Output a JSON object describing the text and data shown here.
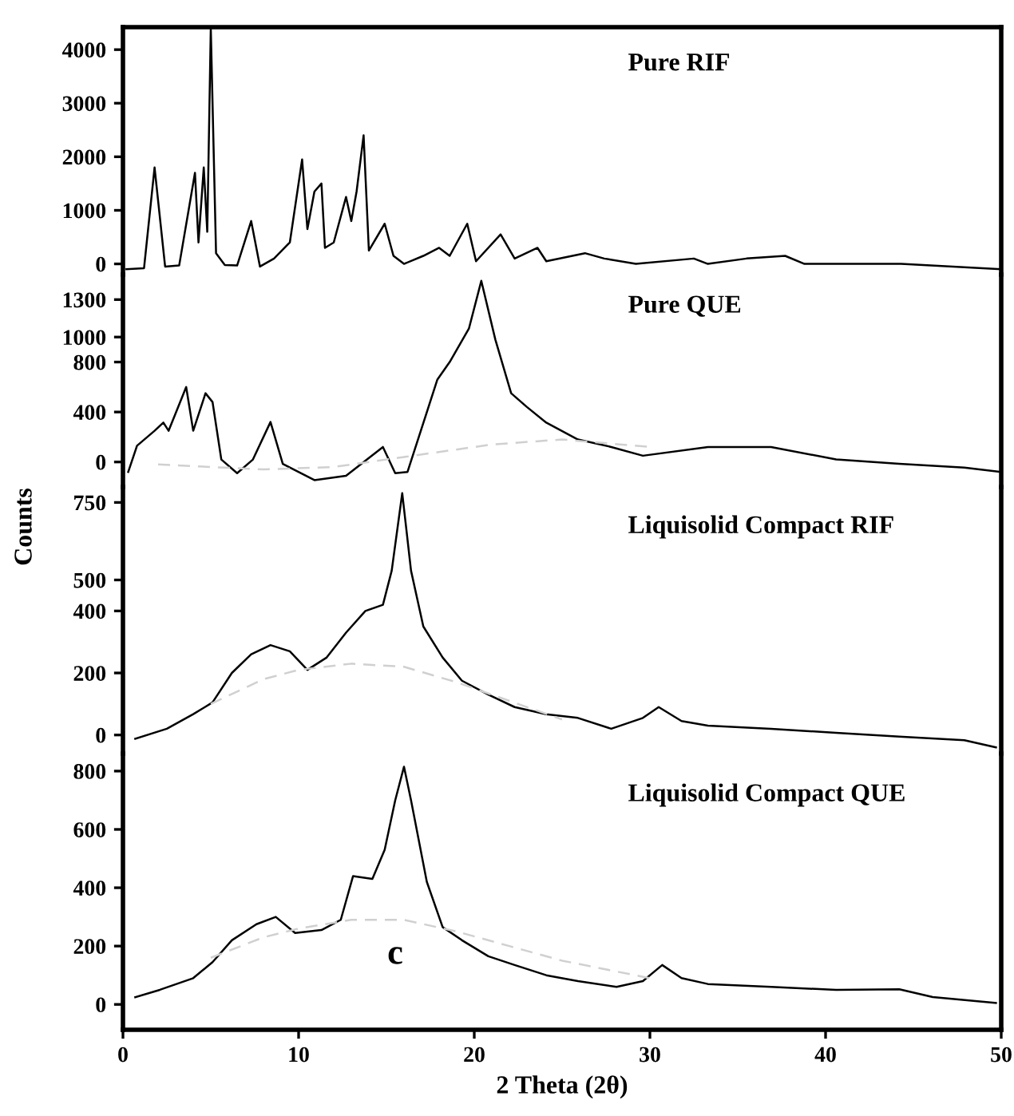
{
  "chart_data": [
    {
      "type": "line",
      "title": "Pure RIF",
      "xlim": [
        0,
        50
      ],
      "ylim": [
        -200,
        4420
      ],
      "yticks": [
        0,
        1000,
        2000,
        3000,
        4000
      ],
      "tick_labels": "y",
      "grid": false,
      "legend": false,
      "marker": "none",
      "line_style": "solid",
      "series": [
        {
          "color": "#000000",
          "x": [
            0.2,
            1.2,
            1.8,
            2.4,
            3.2,
            4.1,
            4.3,
            4.6,
            4.8,
            5.0,
            5.3,
            5.8,
            6.5,
            7.3,
            7.8,
            8.6,
            9.5,
            10.2,
            10.5,
            10.9,
            11.3,
            11.5,
            12.0,
            12.7,
            13.0,
            13.3,
            13.7,
            14.0,
            14.9,
            15.4,
            16.0,
            17.1,
            18.0,
            18.6,
            19.6,
            20.1,
            21.5,
            22.3,
            23.6,
            24.1,
            26.3,
            27.4,
            29.2,
            32.5,
            33.3,
            35.5,
            37.7,
            38.8,
            44.3,
            50
          ],
          "values": [
            -100,
            -80,
            1800,
            -50,
            -30,
            1700,
            400,
            1800,
            600,
            4400,
            200,
            -20,
            -30,
            800,
            -50,
            100,
            400,
            1950,
            650,
            1350,
            1500,
            300,
            400,
            1250,
            800,
            1350,
            2400,
            250,
            750,
            150,
            0,
            150,
            300,
            150,
            750,
            50,
            550,
            100,
            300,
            50,
            200,
            100,
            0,
            100,
            0,
            100,
            150,
            0,
            0,
            -100
          ]
        }
      ]
    },
    {
      "type": "line",
      "title": "Pure QUE",
      "xlim": [
        0,
        50
      ],
      "ylim": [
        -200,
        1500
      ],
      "yticks": [
        0,
        400,
        800,
        1000,
        1300
      ],
      "tick_labels": "y",
      "grid": false,
      "legend": false,
      "marker": "none",
      "line_style": "solid",
      "series": [
        {
          "color": "#000000",
          "x": [
            0.3,
            0.8,
            1.8,
            2.3,
            2.6,
            3.6,
            4.0,
            4.7,
            5.1,
            5.6,
            6.5,
            7.4,
            8.4,
            9.1,
            10.9,
            12.7,
            14.8,
            15.5,
            16.2,
            17.9,
            18.6,
            19.7,
            20.4,
            21.2,
            22.1,
            23.0,
            24.1,
            25.9,
            27.8,
            29.6,
            33.3,
            36.9,
            40.6,
            44.2,
            47.9,
            50
          ],
          "values": [
            -80,
            130,
            250,
            315,
            250,
            600,
            250,
            550,
            480,
            20,
            -90,
            20,
            320,
            -15,
            -145,
            -110,
            120,
            -90,
            -80,
            660,
            800,
            1070,
            1450,
            980,
            550,
            440,
            315,
            180,
            120,
            50,
            120,
            120,
            20,
            -15,
            -45,
            -80
          ]
        },
        {
          "color": "#d0d0d0",
          "line_style": "dashed",
          "x": [
            2,
            8,
            12,
            16,
            21,
            25,
            30
          ],
          "values": [
            -20,
            -60,
            -40,
            40,
            140,
            180,
            120
          ]
        }
      ]
    },
    {
      "type": "line",
      "title": "Liquisolid Compact RIF",
      "xlim": [
        0,
        50
      ],
      "ylim": [
        -60,
        800
      ],
      "yticks": [
        0,
        200,
        400,
        500,
        750
      ],
      "tick_labels": "y",
      "grid": false,
      "legend": false,
      "marker": "none",
      "line_style": "solid",
      "series": [
        {
          "color": "#000000",
          "x": [
            0.7,
            2.5,
            4.0,
            5.1,
            6.2,
            7.3,
            8.4,
            9.5,
            10.5,
            11.6,
            12.7,
            13.8,
            14.8,
            15.3,
            15.9,
            16.4,
            17.1,
            18.2,
            19.3,
            20.8,
            22.3,
            24.1,
            25.9,
            27.8,
            29.6,
            30.5,
            31.8,
            33.3,
            36.9,
            40.6,
            44.2,
            47.9,
            49.7
          ],
          "values": [
            -12,
            20,
            67,
            105,
            200,
            260,
            290,
            270,
            210,
            250,
            330,
            400,
            420,
            530,
            780,
            530,
            350,
            250,
            175,
            130,
            90,
            67,
            55,
            20,
            55,
            90,
            45,
            30,
            20,
            7,
            -5,
            -17,
            -40
          ]
        },
        {
          "color": "#d0d0d0",
          "line_style": "dashed",
          "x": [
            5,
            8,
            10,
            13,
            16,
            19,
            22,
            25
          ],
          "values": [
            100,
            180,
            210,
            230,
            220,
            170,
            110,
            50
          ]
        }
      ]
    },
    {
      "type": "line",
      "title": "Liquisolid Compact QUE",
      "xlabel": "2 Theta (2θ)",
      "ylabel": "Counts",
      "annotations": [
        "c"
      ],
      "xlim": [
        0,
        50
      ],
      "ylim": [
        -87,
        860
      ],
      "xticks": [
        0,
        10,
        20,
        30,
        40,
        50
      ],
      "yticks": [
        0,
        200,
        400,
        600,
        800
      ],
      "grid": false,
      "legend": false,
      "marker": "none",
      "line_style": "solid",
      "series": [
        {
          "color": "#000000",
          "x": [
            0.7,
            2.1,
            4.0,
            5.1,
            6.2,
            7.6,
            8.7,
            9.8,
            11.3,
            12.4,
            13.1,
            14.2,
            14.9,
            15.5,
            16.0,
            16.4,
            17.3,
            18.2,
            19.3,
            20.8,
            22.3,
            24.1,
            25.9,
            28.1,
            29.6,
            30.7,
            31.8,
            33.3,
            36.9,
            40.6,
            44.2,
            46.1,
            49.7
          ],
          "values": [
            25,
            50,
            90,
            145,
            220,
            275,
            300,
            245,
            255,
            290,
            440,
            430,
            530,
            700,
            815,
            700,
            420,
            265,
            220,
            165,
            135,
            100,
            80,
            60,
            80,
            135,
            90,
            70,
            60,
            50,
            52,
            25,
            5
          ]
        },
        {
          "color": "#d0d0d0",
          "line_style": "dashed",
          "x": [
            5,
            8,
            10,
            13,
            16,
            19,
            22,
            25,
            30
          ],
          "values": [
            160,
            230,
            260,
            290,
            290,
            250,
            200,
            150,
            90
          ]
        }
      ]
    }
  ]
}
